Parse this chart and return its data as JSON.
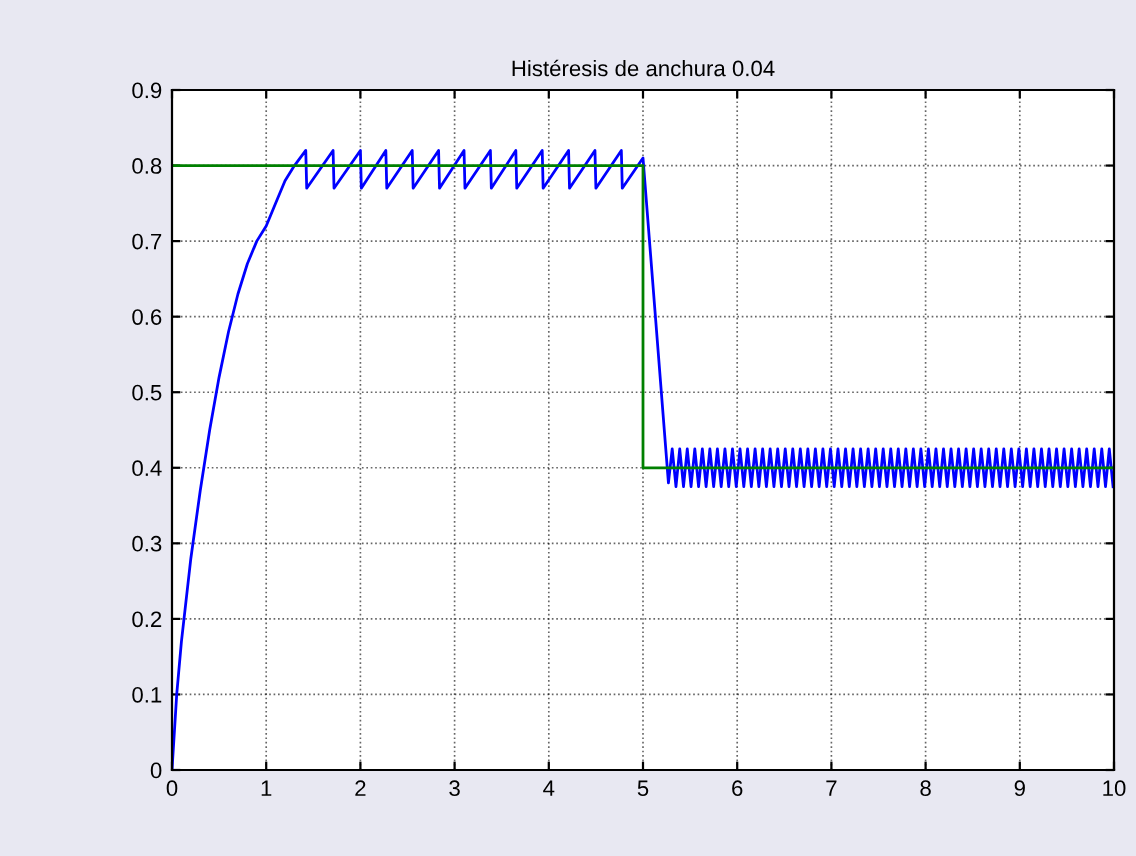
{
  "chart_data": {
    "type": "line",
    "title": "Histéresis de anchura 0.04",
    "xlim": [
      0,
      10
    ],
    "ylim": [
      0,
      0.9
    ],
    "xticks": [
      0,
      1,
      2,
      3,
      4,
      5,
      6,
      7,
      8,
      9,
      10
    ],
    "yticks": [
      0,
      0.1,
      0.2,
      0.3,
      0.4,
      0.5,
      0.6,
      0.7,
      0.8,
      0.9
    ],
    "grid": true,
    "line_style": "solid",
    "series": [
      {
        "color": "#0000ff",
        "x": [
          0,
          0.05,
          0.1,
          0.2,
          0.3,
          0.4,
          0.5,
          0.6,
          0.7,
          0.8,
          0.9,
          1.0,
          1.1,
          1.2,
          1.3,
          1.42,
          1.43,
          1.71,
          1.72,
          2.0,
          2.01,
          2.27,
          2.28,
          2.55,
          2.56,
          2.83,
          2.84,
          3.1,
          3.11,
          3.38,
          3.39,
          3.65,
          3.66,
          3.93,
          3.94,
          4.21,
          4.22,
          4.49,
          4.5,
          4.77,
          4.78,
          5.0,
          5.27,
          5.31,
          5.35,
          5.39,
          5.43,
          5.47,
          5.51,
          5.55,
          5.59,
          5.63,
          5.67,
          5.71,
          5.75,
          5.79,
          5.83,
          5.87,
          5.91,
          5.95,
          5.99,
          6.03,
          6.07,
          6.11,
          6.15,
          6.19,
          6.23,
          6.27,
          6.31,
          6.35,
          6.39,
          6.43,
          6.47,
          6.51,
          6.55,
          6.59,
          6.63,
          6.67,
          6.71,
          6.75,
          6.79,
          6.83,
          6.87,
          6.91,
          6.95,
          6.99,
          7.03,
          7.07,
          7.11,
          7.15,
          7.19,
          7.23,
          7.27,
          7.31,
          7.35,
          7.39,
          7.43,
          7.47,
          7.51,
          7.55,
          7.59,
          7.63,
          7.67,
          7.71,
          7.75,
          7.79,
          7.83,
          7.87,
          7.91,
          7.95,
          7.99,
          8.03,
          8.07,
          8.11,
          8.15,
          8.19,
          8.23,
          8.27,
          8.31,
          8.35,
          8.39,
          8.43,
          8.47,
          8.51,
          8.55,
          8.59,
          8.63,
          8.67,
          8.71,
          8.75,
          8.79,
          8.83,
          8.87,
          8.91,
          8.95,
          8.99,
          9.03,
          9.07,
          9.11,
          9.15,
          9.19,
          9.23,
          9.27,
          9.31,
          9.35,
          9.39,
          9.43,
          9.47,
          9.51,
          9.55,
          9.59,
          9.63,
          9.67,
          9.71,
          9.75,
          9.79,
          9.83,
          9.87,
          9.91,
          9.95,
          9.99
        ],
        "values": [
          0,
          0.1,
          0.17,
          0.28,
          0.37,
          0.45,
          0.52,
          0.58,
          0.63,
          0.67,
          0.7,
          0.72,
          0.75,
          0.78,
          0.8,
          0.82,
          0.77,
          0.82,
          0.77,
          0.82,
          0.77,
          0.82,
          0.77,
          0.82,
          0.77,
          0.82,
          0.77,
          0.82,
          0.77,
          0.82,
          0.77,
          0.82,
          0.77,
          0.82,
          0.77,
          0.82,
          0.77,
          0.82,
          0.77,
          0.82,
          0.77,
          0.81,
          0.38,
          0.425,
          0.375,
          0.425,
          0.375,
          0.425,
          0.375,
          0.425,
          0.375,
          0.425,
          0.375,
          0.425,
          0.375,
          0.425,
          0.375,
          0.425,
          0.375,
          0.425,
          0.375,
          0.425,
          0.375,
          0.425,
          0.375,
          0.425,
          0.375,
          0.425,
          0.375,
          0.425,
          0.375,
          0.425,
          0.375,
          0.425,
          0.375,
          0.425,
          0.375,
          0.425,
          0.375,
          0.425,
          0.375,
          0.425,
          0.375,
          0.425,
          0.375,
          0.425,
          0.375,
          0.425,
          0.375,
          0.425,
          0.375,
          0.425,
          0.375,
          0.425,
          0.375,
          0.425,
          0.375,
          0.425,
          0.375,
          0.425,
          0.375,
          0.425,
          0.375,
          0.425,
          0.375,
          0.425,
          0.375,
          0.425,
          0.375,
          0.425,
          0.375,
          0.425,
          0.375,
          0.425,
          0.375,
          0.425,
          0.375,
          0.425,
          0.375,
          0.425,
          0.375,
          0.425,
          0.375,
          0.425,
          0.375,
          0.425,
          0.375,
          0.425,
          0.375,
          0.425,
          0.375,
          0.425,
          0.375,
          0.425,
          0.375,
          0.425,
          0.375,
          0.425,
          0.375,
          0.425,
          0.375,
          0.425,
          0.375,
          0.425,
          0.375,
          0.425,
          0.375,
          0.425,
          0.375,
          0.425,
          0.375,
          0.425,
          0.375,
          0.425,
          0.375,
          0.425,
          0.375,
          0.425,
          0.375,
          0.425,
          0.375
        ]
      },
      {
        "color": "#008000",
        "x": [
          0,
          5,
          5,
          10
        ],
        "values": [
          0.8,
          0.8,
          0.4,
          0.4
        ]
      }
    ]
  }
}
